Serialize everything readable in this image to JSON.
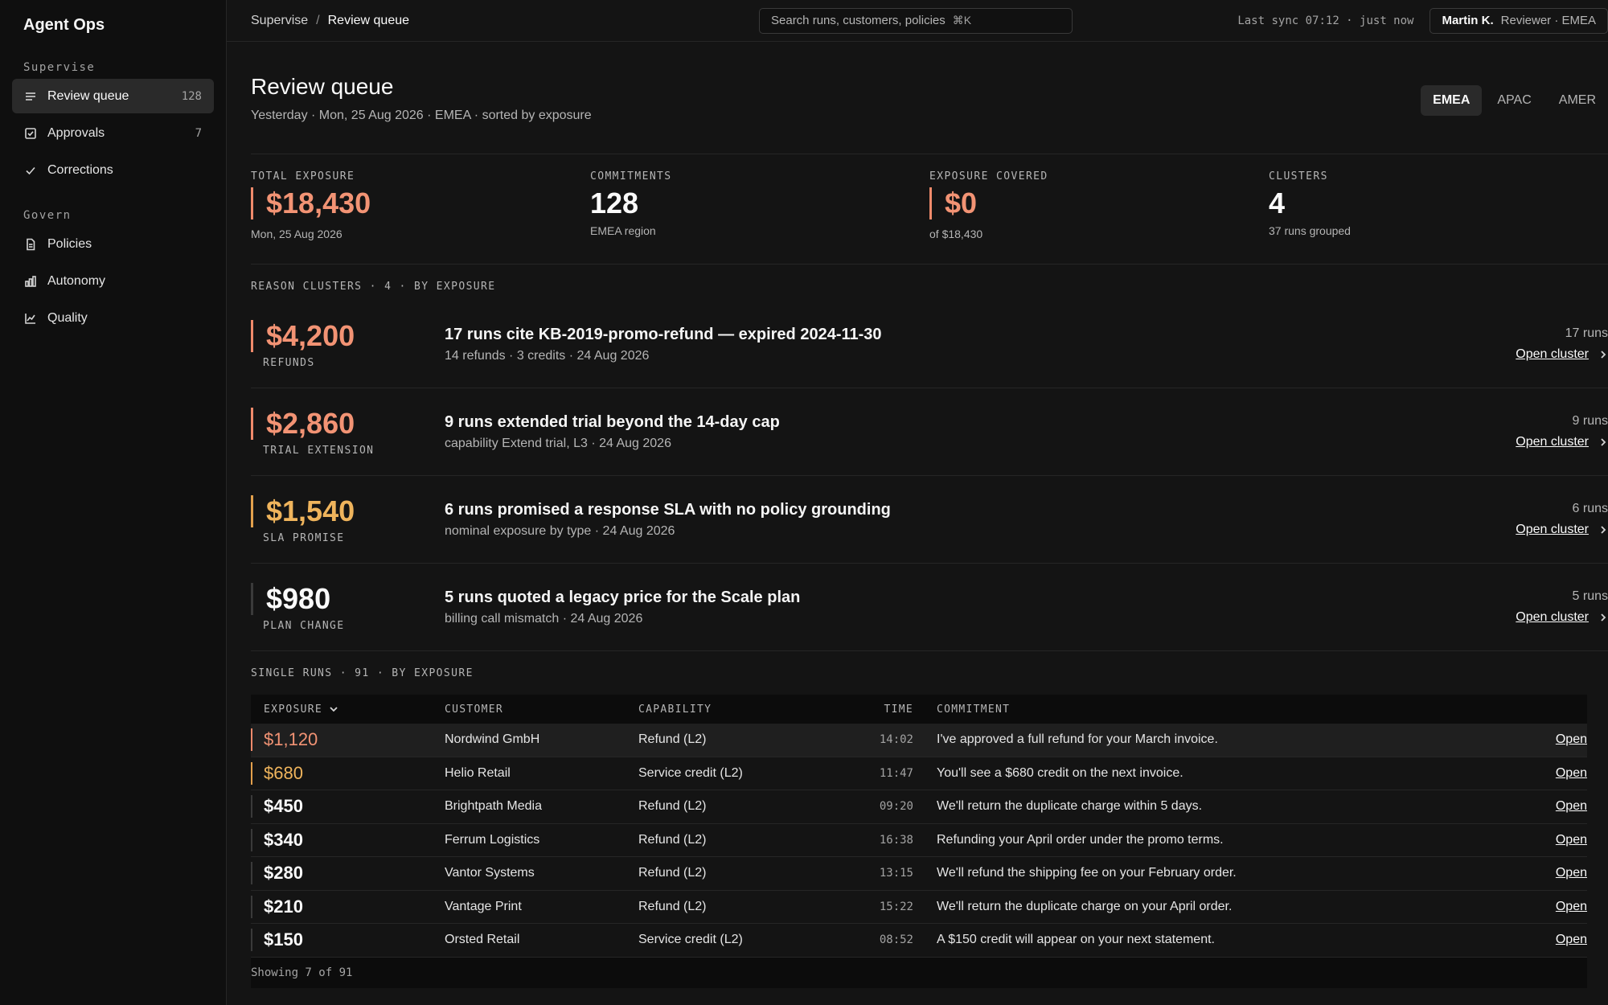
{
  "app": {
    "title": "Agent Ops"
  },
  "sidebar": {
    "sections": [
      {
        "label": "Supervise"
      },
      {
        "label": "Govern"
      }
    ],
    "items": [
      {
        "label": "Review queue",
        "count": "128",
        "icon": "list-icon"
      },
      {
        "label": "Approvals",
        "count": "7",
        "icon": "checkbox-icon"
      },
      {
        "label": "Corrections",
        "count": "",
        "icon": "check-icon"
      },
      {
        "label": "Policies",
        "count": "",
        "icon": "document-icon"
      },
      {
        "label": "Autonomy",
        "count": "",
        "icon": "bar-chart-icon"
      },
      {
        "label": "Quality",
        "count": "",
        "icon": "line-chart-icon"
      }
    ]
  },
  "topbar": {
    "breadcrumb": [
      "Supervise",
      "Review queue"
    ],
    "search_placeholder": "Search runs, customers, policies",
    "search_shortcut": "⌘K",
    "sync": "Last sync 07:12 · just now",
    "user_name": "Martin K.",
    "user_role": "Reviewer · EMEA"
  },
  "page": {
    "title": "Review queue",
    "subtitle": "Yesterday · Mon, 25 Aug 2026 · EMEA · sorted by exposure",
    "regions": [
      "EMEA",
      "APAC",
      "AMER"
    ],
    "active_region": "EMEA"
  },
  "stats": [
    {
      "label": "TOTAL EXPOSURE",
      "value": "$18,430",
      "note": "Mon, 25 Aug 2026"
    },
    {
      "label": "COMMITMENTS",
      "value": "128",
      "note": "EMEA region"
    },
    {
      "label": "EXPOSURE COVERED",
      "value": "$0",
      "note": "of $18,430"
    },
    {
      "label": "CLUSTERS",
      "value": "4",
      "note": "37 runs grouped"
    }
  ],
  "clusters": {
    "section_label": "REASON CLUSTERS · 4 · BY EXPOSURE",
    "open_label": "Open cluster",
    "items": [
      {
        "amount": "$4,200",
        "tag": "REFUNDS",
        "title": "17 runs cite KB-2019-promo-refund — expired 2024-11-30",
        "meta": "14 refunds · 3 credits · 24 Aug 2026",
        "runs": "17 runs"
      },
      {
        "amount": "$2,860",
        "tag": "TRIAL EXTENSION",
        "title": "9 runs extended trial beyond the 14-day cap",
        "meta": "capability Extend trial, L3 · 24 Aug 2026",
        "runs": "9 runs"
      },
      {
        "amount": "$1,540",
        "tag": "SLA PROMISE",
        "title": "6 runs promised a response SLA with no policy grounding",
        "meta": "nominal exposure by type · 24 Aug 2026",
        "runs": "6 runs"
      },
      {
        "amount": "$980",
        "tag": "PLAN CHANGE",
        "title": "5 runs quoted a legacy price for the Scale plan",
        "meta": "billing call mismatch · 24 Aug 2026",
        "runs": "5 runs"
      }
    ]
  },
  "single_runs": {
    "section_label": "SINGLE RUNS · 91 · BY EXPOSURE",
    "columns": [
      "EXPOSURE",
      "CUSTOMER",
      "CAPABILITY",
      "TIME",
      "COMMITMENT"
    ],
    "open_label": "Open",
    "rows": [
      {
        "exposure": "$1,120",
        "customer": "Nordwind GmbH",
        "capability": "Refund (L2)",
        "time": "14:02",
        "commitment": "I've approved a full refund for your March invoice."
      },
      {
        "exposure": "$680",
        "customer": "Helio Retail",
        "capability": "Service credit (L2)",
        "time": "11:47",
        "commitment": "You'll see a $680 credit on the next invoice."
      },
      {
        "exposure": "$450",
        "customer": "Brightpath Media",
        "capability": "Refund (L2)",
        "time": "09:20",
        "commitment": "We'll return the duplicate charge within 5 days."
      },
      {
        "exposure": "$340",
        "customer": "Ferrum Logistics",
        "capability": "Refund (L2)",
        "time": "16:38",
        "commitment": "Refunding your April order under the promo terms."
      },
      {
        "exposure": "$280",
        "customer": "Vantor Systems",
        "capability": "Refund (L2)",
        "time": "13:15",
        "commitment": "We'll refund the shipping fee on your February order."
      },
      {
        "exposure": "$210",
        "customer": "Vantage Print",
        "capability": "Refund (L2)",
        "time": "15:22",
        "commitment": "We'll return the duplicate charge on your April order."
      },
      {
        "exposure": "$150",
        "customer": "Orsted Retail",
        "capability": "Service credit (L2)",
        "time": "08:52",
        "commitment": "A $150 credit will appear on your next statement."
      }
    ],
    "footer": "Showing 7 of 91"
  },
  "colors": {
    "background": "#141414",
    "sidebar": "#0f0f0f",
    "accent_red": "#f29374",
    "accent_amber": "#efb45c",
    "text": "#ededed"
  }
}
